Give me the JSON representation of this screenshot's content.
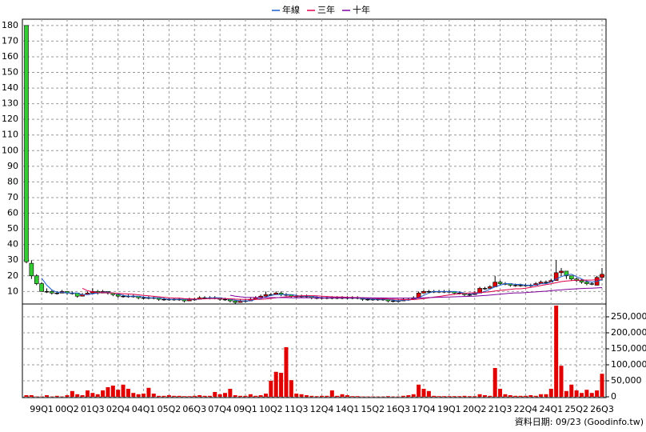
{
  "chart_data": {
    "type": "candlestick",
    "categories": [
      null,
      null,
      null,
      "99Q1",
      null,
      null,
      null,
      null,
      "00Q2",
      null,
      null,
      null,
      null,
      "01Q3",
      null,
      null,
      null,
      null,
      "02Q4",
      null,
      null,
      null,
      null,
      "04Q1",
      null,
      null,
      null,
      null,
      "05Q2",
      null,
      null,
      null,
      null,
      "06Q3",
      null,
      null,
      null,
      null,
      "07Q4",
      null,
      null,
      null,
      null,
      "09Q1",
      null,
      null,
      null,
      null,
      "10Q2",
      null,
      null,
      null,
      null,
      "11Q3",
      null,
      null,
      null,
      null,
      "12Q4",
      null,
      null,
      null,
      null,
      "14Q1",
      null,
      null,
      null,
      null,
      "15Q2",
      null,
      null,
      null,
      null,
      "16Q3",
      null,
      null,
      null,
      null,
      "17Q4",
      null,
      null,
      null,
      null,
      "19Q1",
      null,
      null,
      null,
      null,
      "20Q2",
      null,
      null,
      null,
      null,
      "21Q3",
      null,
      null,
      null,
      null,
      "22Q4",
      null,
      null,
      null,
      null,
      "24Q1",
      null,
      null,
      null,
      null,
      "25Q2",
      null,
      null,
      null,
      null,
      "26Q3"
    ],
    "ohlc": [
      [
        180,
        180,
        28,
        29
      ],
      [
        28,
        30,
        18,
        20
      ],
      [
        20,
        21,
        14,
        15
      ],
      [
        15,
        16,
        10,
        10
      ],
      [
        10,
        12,
        9,
        10
      ],
      [
        10,
        11,
        8,
        9
      ],
      [
        9,
        10,
        8,
        9
      ],
      [
        9,
        11,
        9,
        10
      ],
      [
        10,
        10,
        8,
        9
      ],
      [
        9,
        10,
        8,
        9
      ],
      [
        9,
        9,
        6,
        7
      ],
      [
        7,
        9,
        7,
        8
      ],
      [
        8,
        10,
        8,
        9
      ],
      [
        9,
        12,
        9,
        10
      ],
      [
        10,
        11,
        8,
        9
      ],
      [
        9,
        11,
        9,
        10
      ],
      [
        10,
        10,
        8,
        9
      ],
      [
        9,
        9,
        7,
        8
      ],
      [
        8,
        8,
        6,
        7
      ],
      [
        7,
        8,
        6,
        7
      ],
      [
        7,
        8,
        6,
        7
      ],
      [
        7,
        8,
        6,
        7
      ],
      [
        7,
        7,
        5,
        6
      ],
      [
        6,
        7,
        5,
        6
      ],
      [
        6,
        7,
        5,
        6
      ],
      [
        6,
        7,
        5,
        6
      ],
      [
        6,
        6,
        4,
        5
      ],
      [
        5,
        6,
        4,
        5
      ],
      [
        5,
        6,
        4,
        5
      ],
      [
        5,
        6,
        4,
        5
      ],
      [
        5,
        6,
        4,
        5
      ],
      [
        5,
        5,
        3,
        4
      ],
      [
        4,
        6,
        4,
        5
      ],
      [
        5,
        6,
        4,
        5
      ],
      [
        5,
        7,
        5,
        6
      ],
      [
        6,
        7,
        5,
        6
      ],
      [
        6,
        7,
        5,
        6
      ],
      [
        6,
        7,
        5,
        6
      ],
      [
        6,
        6,
        4,
        5
      ],
      [
        5,
        6,
        4,
        5
      ],
      [
        5,
        5,
        3,
        4
      ],
      [
        4,
        4,
        2,
        3
      ],
      [
        3,
        5,
        3,
        4
      ],
      [
        4,
        5,
        3,
        4
      ],
      [
        4,
        6,
        4,
        5
      ],
      [
        5,
        7,
        5,
        6
      ],
      [
        6,
        8,
        6,
        7
      ],
      [
        7,
        10,
        7,
        8
      ],
      [
        8,
        9,
        7,
        8
      ],
      [
        8,
        10,
        8,
        9
      ],
      [
        9,
        10,
        7,
        8
      ],
      [
        8,
        9,
        7,
        8
      ],
      [
        8,
        8,
        6,
        7
      ],
      [
        7,
        8,
        6,
        7
      ],
      [
        7,
        8,
        6,
        7
      ],
      [
        7,
        8,
        6,
        7
      ],
      [
        7,
        7,
        5,
        6
      ],
      [
        6,
        7,
        5,
        6
      ],
      [
        6,
        7,
        5,
        6
      ],
      [
        6,
        7,
        5,
        6
      ],
      [
        6,
        7,
        5,
        6
      ],
      [
        6,
        7,
        5,
        6
      ],
      [
        6,
        7,
        5,
        6
      ],
      [
        6,
        7,
        5,
        6
      ],
      [
        6,
        7,
        5,
        6
      ],
      [
        6,
        7,
        5,
        6
      ],
      [
        6,
        6,
        4,
        5
      ],
      [
        5,
        6,
        4,
        5
      ],
      [
        5,
        6,
        4,
        5
      ],
      [
        5,
        6,
        4,
        5
      ],
      [
        5,
        6,
        4,
        5
      ],
      [
        5,
        5,
        3,
        4
      ],
      [
        4,
        5,
        3,
        4
      ],
      [
        4,
        5,
        3,
        4
      ],
      [
        4,
        6,
        4,
        5
      ],
      [
        5,
        6,
        4,
        5
      ],
      [
        5,
        7,
        5,
        6
      ],
      [
        6,
        10,
        6,
        9
      ],
      [
        9,
        11,
        9,
        10
      ],
      [
        10,
        11,
        9,
        10
      ],
      [
        10,
        11,
        9,
        10
      ],
      [
        10,
        11,
        9,
        10
      ],
      [
        10,
        11,
        9,
        10
      ],
      [
        10,
        11,
        9,
        10
      ],
      [
        10,
        10,
        8,
        9
      ],
      [
        9,
        10,
        8,
        9
      ],
      [
        9,
        9,
        7,
        8
      ],
      [
        8,
        9,
        7,
        8
      ],
      [
        8,
        10,
        8,
        9
      ],
      [
        9,
        13,
        9,
        12
      ],
      [
        12,
        13,
        11,
        12
      ],
      [
        12,
        14,
        12,
        13
      ],
      [
        13,
        20,
        13,
        16
      ],
      [
        16,
        17,
        14,
        15
      ],
      [
        15,
        16,
        14,
        15
      ],
      [
        15,
        15,
        13,
        14
      ],
      [
        14,
        15,
        13,
        14
      ],
      [
        14,
        15,
        13,
        14
      ],
      [
        14,
        15,
        13,
        14
      ],
      [
        14,
        15,
        13,
        14
      ],
      [
        14,
        16,
        14,
        15
      ],
      [
        15,
        17,
        15,
        16
      ],
      [
        16,
        17,
        15,
        16
      ],
      [
        16,
        18,
        16,
        17
      ],
      [
        17,
        30,
        17,
        22
      ],
      [
        22,
        25,
        20,
        23
      ],
      [
        23,
        23,
        18,
        20
      ],
      [
        20,
        20,
        17,
        18
      ],
      [
        18,
        19,
        16,
        17
      ],
      [
        17,
        18,
        15,
        16
      ],
      [
        16,
        17,
        14,
        15
      ],
      [
        15,
        16,
        14,
        15
      ],
      [
        14,
        20,
        14,
        19
      ],
      [
        19,
        25,
        17,
        21
      ]
    ],
    "up_color": "#e00000",
    "down_color": "#33cc33",
    "volume": [
      5000,
      5000,
      1000,
      1000,
      5000,
      1000,
      3000,
      1000,
      5000,
      18000,
      8000,
      5000,
      20000,
      12000,
      8000,
      20000,
      30000,
      35000,
      22000,
      38000,
      25000,
      12000,
      8000,
      10000,
      28000,
      10000,
      3000,
      3000,
      5000,
      3000,
      3000,
      2000,
      2000,
      3000,
      5000,
      3000,
      3000,
      15000,
      8000,
      12000,
      25000,
      5000,
      3000,
      3000,
      8000,
      3000,
      5000,
      10000,
      50000,
      78000,
      75000,
      155000,
      52000,
      10000,
      8000,
      5000,
      3000,
      2000,
      3000,
      3000,
      20000,
      3000,
      8000,
      5000,
      2000,
      2000,
      1000,
      1000,
      1000,
      1000,
      1000,
      2000,
      1000,
      1000,
      3000,
      5000,
      8000,
      38000,
      25000,
      18000,
      3000,
      2000,
      2000,
      2000,
      2000,
      2000,
      3000,
      2000,
      2000,
      8000,
      5000,
      3000,
      90000,
      25000,
      8000,
      5000,
      3000,
      3000,
      3000,
      5000,
      3000,
      8000,
      8000,
      25000,
      285000,
      97000,
      18000,
      38000,
      20000,
      12000,
      22000,
      12000,
      20000,
      72000
    ],
    "volume_color": "#e00000",
    "series": [
      {
        "name": "年線",
        "color": "#1f5fd0",
        "values": [
          null,
          null,
          null,
          18.5,
          14,
          11,
          9.5,
          9.5,
          9,
          9,
          9,
          8,
          8,
          8.5,
          9,
          9.5,
          9.5,
          9,
          8.5,
          7.5,
          7,
          7,
          7,
          6.5,
          6,
          6,
          6,
          5.5,
          5,
          5,
          5,
          5,
          5,
          5,
          5,
          5.5,
          6,
          6,
          6,
          5.5,
          5,
          4.5,
          4,
          4,
          4,
          5,
          5.5,
          6.5,
          7.5,
          8,
          8,
          8,
          8,
          7.5,
          7,
          7,
          7,
          6.5,
          6,
          6,
          6,
          6,
          6,
          6,
          6,
          6,
          5.5,
          5.5,
          5,
          5,
          5,
          5,
          4.5,
          4,
          4.5,
          4.5,
          5,
          6,
          7.5,
          9,
          10,
          10,
          10,
          10,
          10,
          9.5,
          9,
          8.5,
          8.5,
          9,
          10,
          11.5,
          13,
          14,
          15,
          15,
          14.5,
          14.5,
          14,
          14,
          14,
          15,
          15,
          16,
          18,
          19.5,
          20.5,
          21,
          19.5,
          18,
          16.5,
          16,
          16.5,
          17.5
        ]
      },
      {
        "name": "三年",
        "color": "#e0004a",
        "values": [
          null,
          null,
          null,
          null,
          null,
          null,
          null,
          null,
          null,
          null,
          null,
          12,
          10.5,
          9.8,
          9.3,
          9.2,
          9.2,
          9,
          8.8,
          8.6,
          8.4,
          8.2,
          7.9,
          7.5,
          7.2,
          6.9,
          6.6,
          6.3,
          6,
          5.8,
          5.8,
          5.5,
          5.3,
          5.2,
          5.2,
          5.3,
          5.4,
          5.5,
          5.5,
          5.4,
          5.3,
          5.1,
          5,
          4.9,
          4.9,
          4.9,
          5,
          5.2,
          5.6,
          6,
          6.3,
          6.6,
          6.8,
          7,
          7.2,
          7.3,
          7.3,
          7.2,
          7,
          6.8,
          6.6,
          6.5,
          6.5,
          6.3,
          6.2,
          6.1,
          6,
          5.8,
          5.7,
          5.5,
          5.4,
          5.2,
          5.1,
          4.9,
          4.8,
          4.8,
          4.8,
          5.1,
          5.5,
          5.9,
          6.4,
          6.8,
          7.3,
          7.8,
          8.2,
          8.5,
          8.8,
          9,
          9.2,
          9.3,
          9.5,
          9.8,
          10.3,
          10.7,
          11,
          11.3,
          11.7,
          11.7,
          12.1,
          12.6,
          13.2,
          13.8,
          14.4,
          14.9,
          15.6,
          16.3,
          16.7,
          17,
          17.2,
          17.3,
          17.3,
          17.3,
          17.6,
          18
        ]
      },
      {
        "name": "十年",
        "color": "#8000a0",
        "values": [
          null,
          null,
          null,
          null,
          null,
          null,
          null,
          null,
          null,
          null,
          null,
          null,
          null,
          null,
          null,
          null,
          null,
          null,
          null,
          null,
          null,
          null,
          null,
          null,
          null,
          null,
          null,
          null,
          null,
          null,
          null,
          null,
          null,
          null,
          null,
          null,
          null,
          null,
          null,
          null,
          7.6,
          7,
          6.6,
          6.3,
          6.2,
          6.1,
          6.1,
          6.1,
          6.1,
          6.1,
          6.1,
          6.1,
          6,
          6,
          6,
          6,
          6,
          6,
          6,
          6,
          6,
          6,
          6,
          6,
          6,
          6,
          6,
          6,
          5.9,
          5.9,
          5.9,
          5.8,
          5.8,
          5.8,
          5.8,
          5.8,
          5.8,
          5.9,
          6,
          6.1,
          6.2,
          6.3,
          6.4,
          6.5,
          6.6,
          6.7,
          6.8,
          6.9,
          7,
          7.2,
          7.4,
          7.7,
          8,
          8.3,
          8.6,
          8.9,
          9.1,
          9.1,
          9.3,
          9.5,
          9.7,
          10,
          10.2,
          10.5,
          10.8,
          11,
          11.3,
          11.5,
          11.7,
          11.9,
          12,
          12.1,
          12.3,
          12.5
        ]
      }
    ],
    "ylim": [
      2,
      184
    ],
    "yticks": [
      10,
      20,
      30,
      40,
      50,
      60,
      70,
      80,
      90,
      100,
      110,
      120,
      130,
      140,
      150,
      160,
      170,
      180
    ],
    "y2lim": [
      0,
      285000
    ],
    "y2ticks": [
      0,
      {
        "value": 50000,
        "label": "50,000"
      },
      {
        "value": 100000,
        "label": "100,000"
      },
      {
        "value": 150000,
        "label": "150,000"
      },
      {
        "value": 200000,
        "label": "200,000"
      },
      {
        "value": 250000,
        "label": "250,000"
      }
    ],
    "grid": true,
    "footnote": "資料日期: 09/23  (Goodinfo.tw)"
  }
}
